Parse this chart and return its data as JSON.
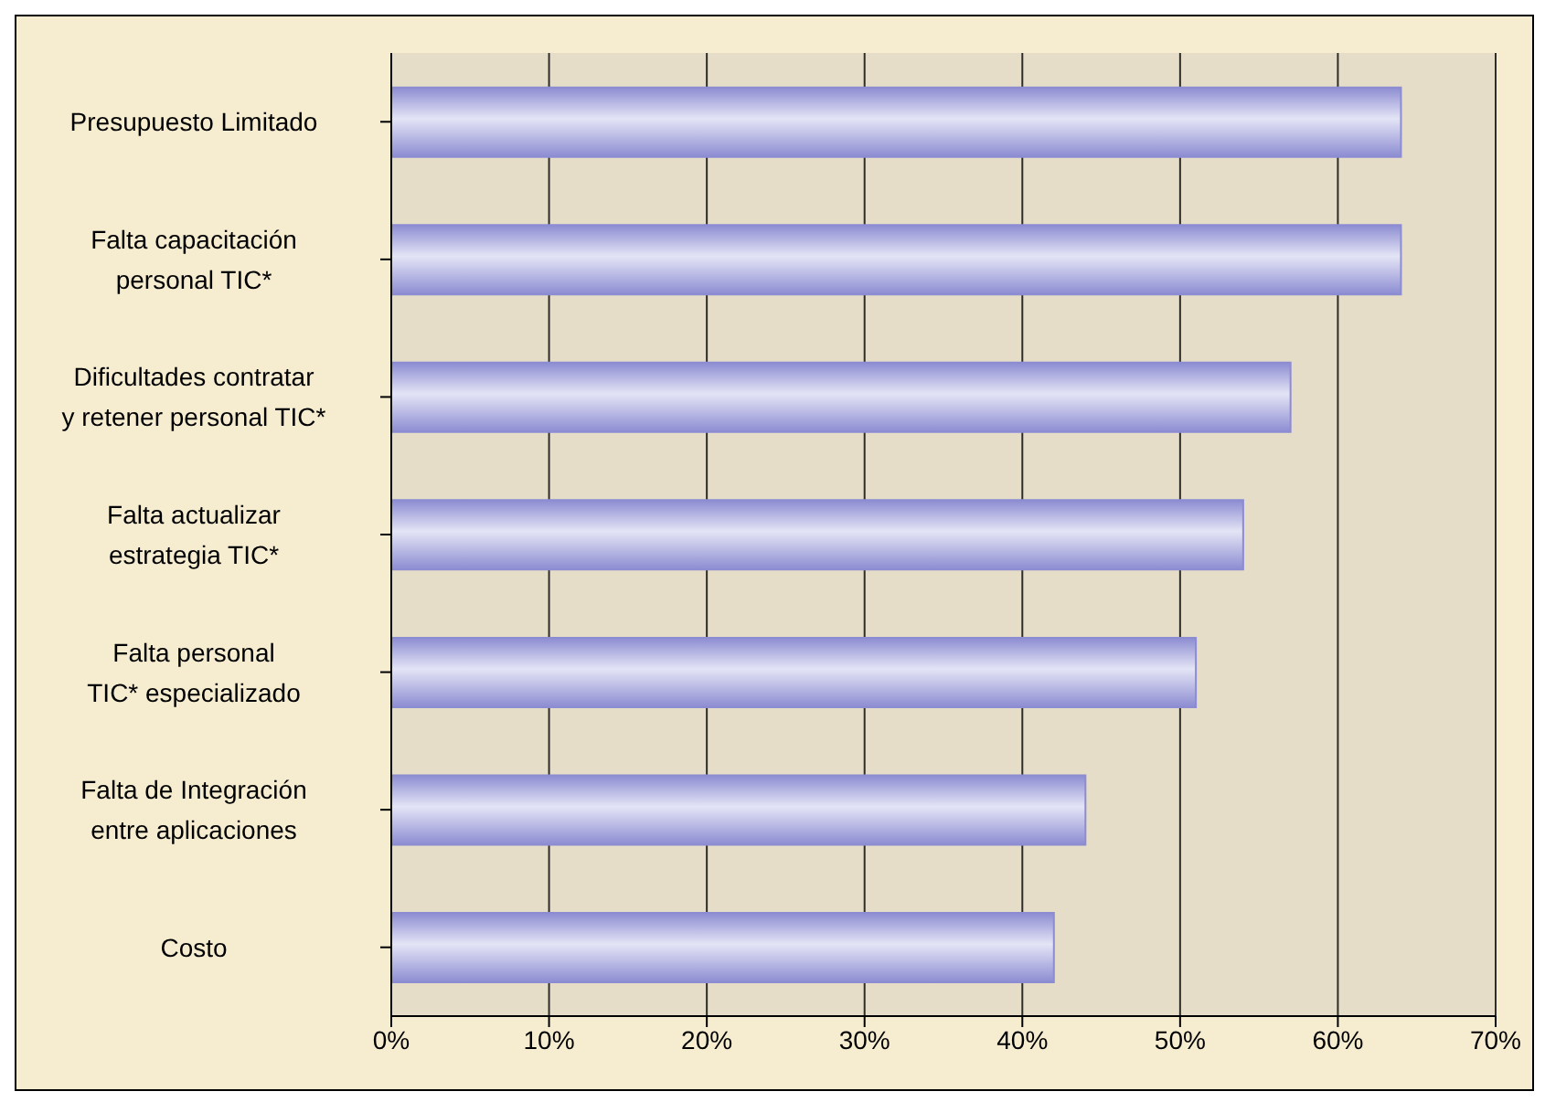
{
  "chart_data": {
    "type": "bar",
    "orientation": "horizontal",
    "categories": [
      "Presupuesto Limitado",
      "Falta capacitación personal TIC*",
      "Dificultades contratar y retener personal TIC*",
      "Falta actualizar estrategia TIC*",
      "Falta personal TIC* especializado",
      "Falta de Integración entre aplicaciones",
      "Costo"
    ],
    "values": [
      64,
      64,
      57,
      54,
      51,
      44,
      42
    ],
    "color": "#8c8cd2",
    "xlim": [
      0,
      70
    ],
    "xticks": [
      {
        "value": 0,
        "label": "0%"
      },
      {
        "value": 10,
        "label": "10%"
      },
      {
        "value": 20,
        "label": "20%"
      },
      {
        "value": 30,
        "label": "30%"
      },
      {
        "value": 40,
        "label": "40%"
      },
      {
        "value": 50,
        "label": "50%"
      },
      {
        "value": 60,
        "label": "60%"
      },
      {
        "value": 70,
        "label": "70%"
      }
    ],
    "grid": "x"
  }
}
